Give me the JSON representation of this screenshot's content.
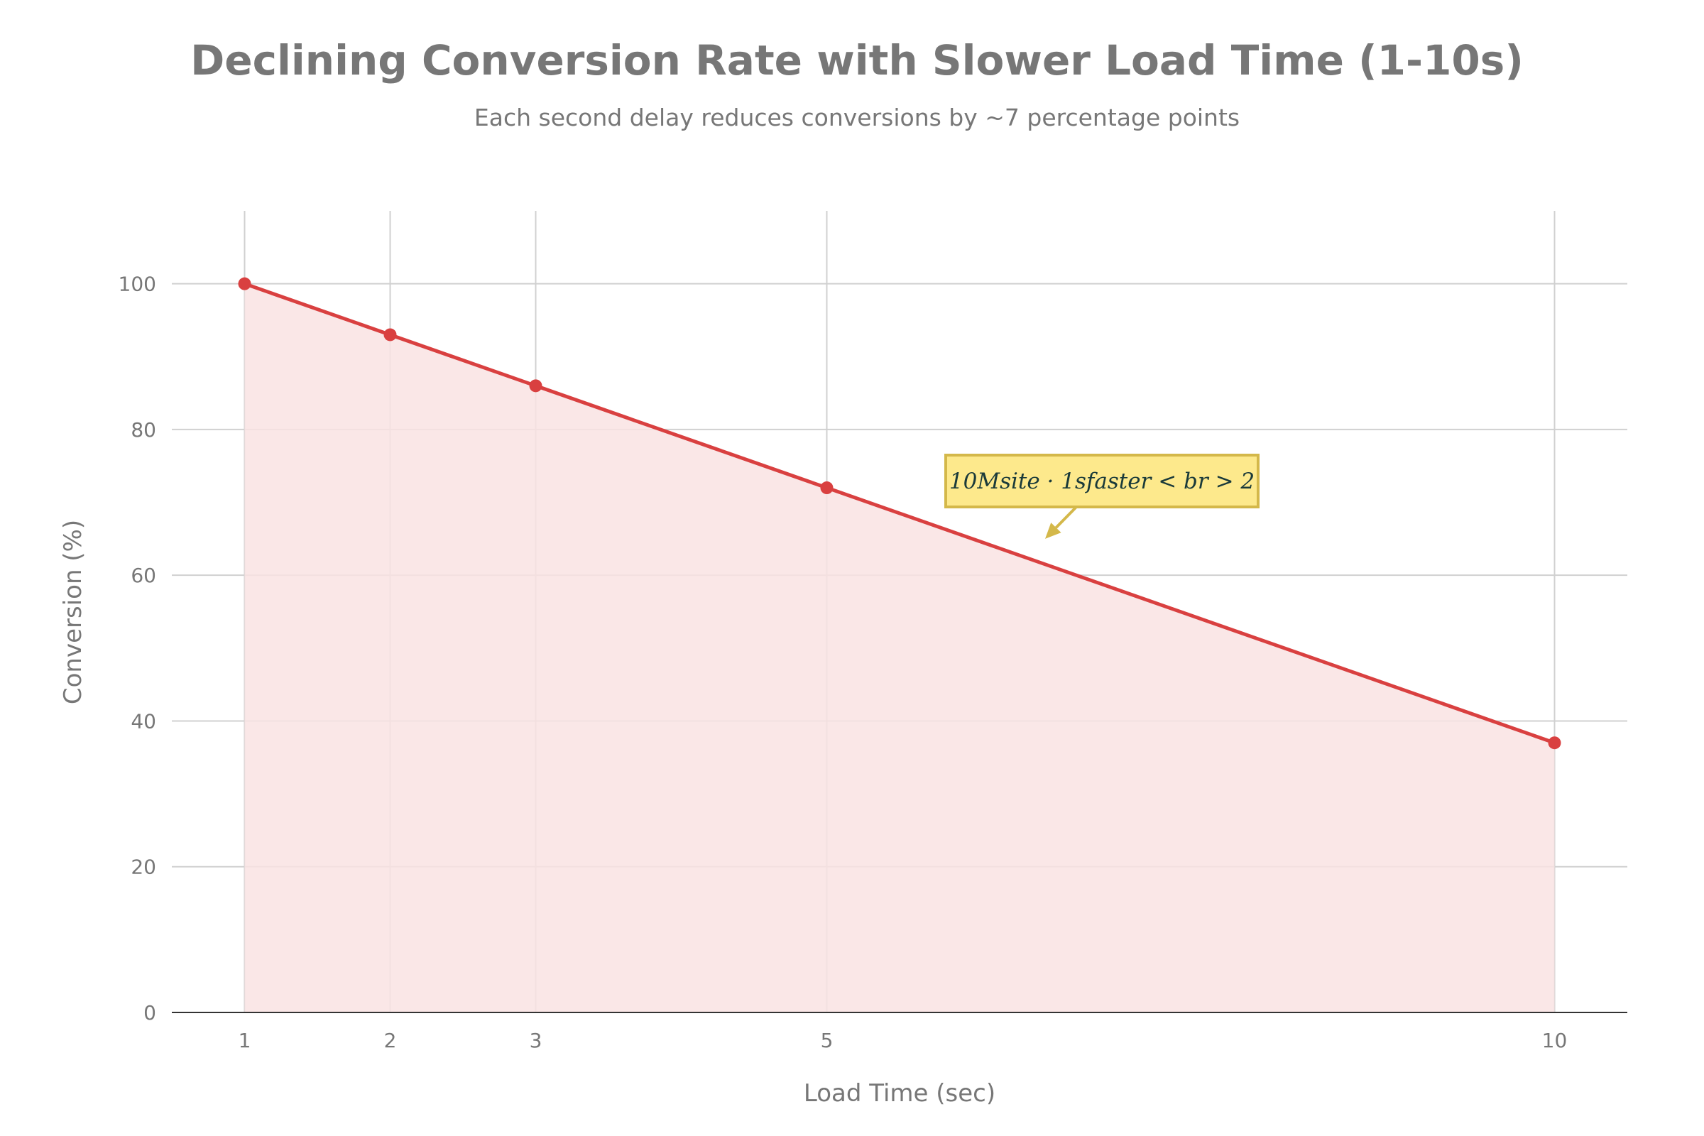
{
  "chart_data": {
    "type": "area",
    "title": "Declining Conversion Rate with Slower Load Time (1-10s)",
    "subtitle": "Each second delay reduces conversions by ~7 percentage points",
    "xlabel": "Load Time (sec)",
    "ylabel": "Conversion (%)",
    "x": [
      1,
      2,
      3,
      5,
      10
    ],
    "values": [
      100,
      93,
      86,
      72,
      37
    ],
    "xlim": [
      0.5,
      10.5
    ],
    "ylim": [
      0,
      110
    ],
    "xticks": [
      1,
      2,
      3,
      5,
      10
    ],
    "yticks": [
      0,
      20,
      40,
      60,
      80,
      100
    ],
    "grid": true,
    "colors": {
      "line": "#d94040",
      "fill": "#f9e3e3",
      "grid": "#d0d0d0",
      "annotation_bg": "#fde98c",
      "annotation_border": "#d4b84a"
    },
    "annotation": {
      "text": "10Msite · 1sfaster < br > 2",
      "x": 6.5,
      "y": 65
    }
  }
}
